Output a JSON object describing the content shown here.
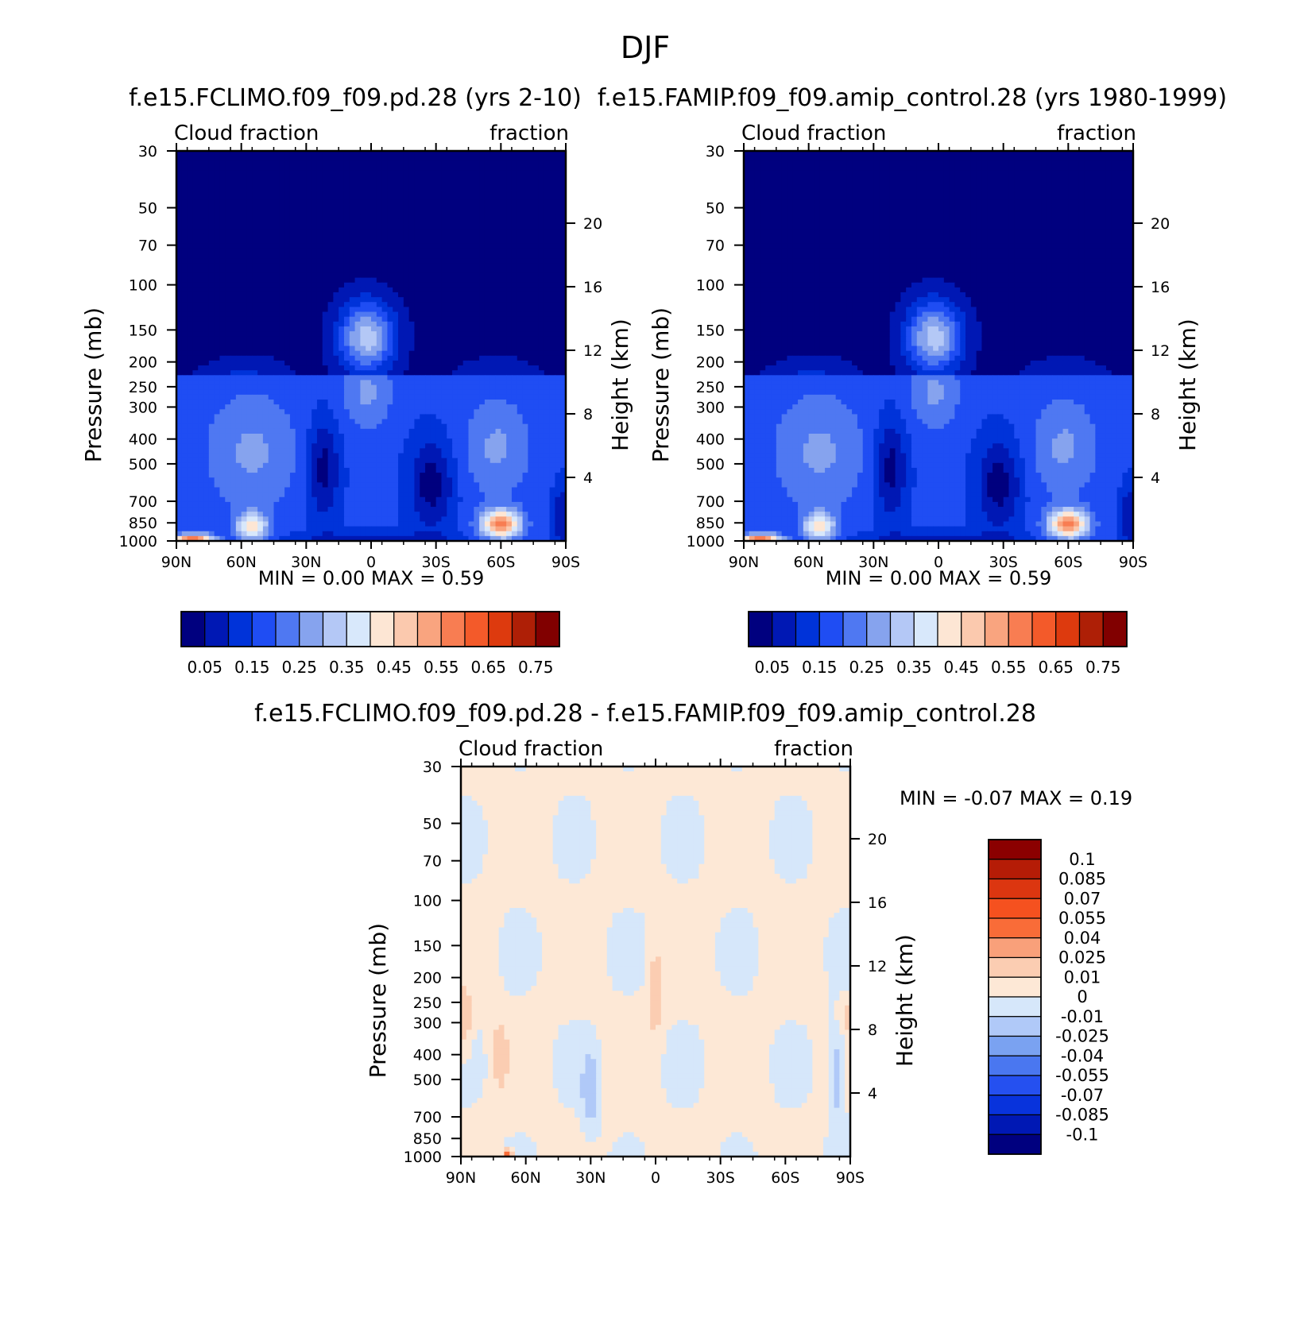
{
  "figure_title": "DJF",
  "chart_data": [
    {
      "type": "heatmap",
      "title": "f.e15.FCLIMO.f09_f09.pd.28 (yrs 2-10)",
      "left_string": "Cloud fraction",
      "right_string": "fraction",
      "xlabel": "",
      "ylabel": "Pressure (mb)",
      "y2label": "Height (km)",
      "x_ticklabels": [
        "90N",
        "60N",
        "30N",
        "0",
        "30S",
        "60S",
        "90S"
      ],
      "x_ticks_lat": [
        90,
        60,
        30,
        0,
        -30,
        -60,
        -90
      ],
      "y_ticklabels": [
        "30",
        "50",
        "70",
        "100",
        "150",
        "200",
        "250",
        "300",
        "400",
        "500",
        "700",
        "850",
        "1000"
      ],
      "y_ticks_mb": [
        30,
        50,
        70,
        100,
        150,
        200,
        250,
        300,
        400,
        500,
        700,
        850,
        1000
      ],
      "y2_ticklabels": [
        "20",
        "16",
        "12",
        "8",
        "4"
      ],
      "y2_ticks_km": [
        20,
        16,
        12,
        8,
        4
      ],
      "xlim": [
        90,
        -90
      ],
      "ylim": [
        1000,
        30
      ],
      "y_scale": "log",
      "stats": "MIN =     0.00   MAX =     0.59",
      "min": 0.0,
      "max": 0.59,
      "colorbar": {
        "orientation": "horizontal",
        "colors": [
          "#00007f",
          "#0018b4",
          "#0033d9",
          "#1f4df3",
          "#4f78f2",
          "#86a3ee",
          "#b4c8f6",
          "#d8e8fb",
          "#fde6d4",
          "#fbc9ae",
          "#f9a47f",
          "#f87d52",
          "#f35a2a",
          "#dd3a0e",
          "#ae1f06",
          "#810000"
        ],
        "labels": [
          "0.05",
          "0.15",
          "0.25",
          "0.35",
          "0.45",
          "0.55",
          "0.65",
          "0.75"
        ],
        "levels": [
          0.05,
          0.1,
          0.15,
          0.2,
          0.25,
          0.3,
          0.35,
          0.4,
          0.45,
          0.5,
          0.55,
          0.6,
          0.65,
          0.7,
          0.75
        ]
      }
    },
    {
      "type": "heatmap",
      "title": "f.e15.FAMIP.f09_f09.amip_control.28 (yrs 1980-1999)",
      "left_string": "Cloud fraction",
      "right_string": "fraction",
      "xlabel": "",
      "ylabel": "Pressure (mb)",
      "y2label": "Height (km)",
      "x_ticklabels": [
        "90N",
        "60N",
        "30N",
        "0",
        "30S",
        "60S",
        "90S"
      ],
      "x_ticks_lat": [
        90,
        60,
        30,
        0,
        -30,
        -60,
        -90
      ],
      "y_ticklabels": [
        "30",
        "50",
        "70",
        "100",
        "150",
        "200",
        "250",
        "300",
        "400",
        "500",
        "700",
        "850",
        "1000"
      ],
      "y_ticks_mb": [
        30,
        50,
        70,
        100,
        150,
        200,
        250,
        300,
        400,
        500,
        700,
        850,
        1000
      ],
      "y2_ticklabels": [
        "20",
        "16",
        "12",
        "8",
        "4"
      ],
      "y2_ticks_km": [
        20,
        16,
        12,
        8,
        4
      ],
      "xlim": [
        90,
        -90
      ],
      "ylim": [
        1000,
        30
      ],
      "y_scale": "log",
      "stats": "MIN =     0.00   MAX =     0.59",
      "min": 0.0,
      "max": 0.59,
      "colorbar": {
        "orientation": "horizontal",
        "colors": [
          "#00007f",
          "#0018b4",
          "#0033d9",
          "#1f4df3",
          "#4f78f2",
          "#86a3ee",
          "#b4c8f6",
          "#d8e8fb",
          "#fde6d4",
          "#fbc9ae",
          "#f9a47f",
          "#f87d52",
          "#f35a2a",
          "#dd3a0e",
          "#ae1f06",
          "#810000"
        ],
        "labels": [
          "0.05",
          "0.15",
          "0.25",
          "0.35",
          "0.45",
          "0.55",
          "0.65",
          "0.75"
        ],
        "levels": [
          0.05,
          0.1,
          0.15,
          0.2,
          0.25,
          0.3,
          0.35,
          0.4,
          0.45,
          0.5,
          0.55,
          0.6,
          0.65,
          0.7,
          0.75
        ]
      }
    },
    {
      "type": "heatmap",
      "title": "f.e15.FCLIMO.f09_f09.pd.28 - f.e15.FAMIP.f09_f09.amip_control.28",
      "left_string": "Cloud fraction",
      "right_string": "fraction",
      "xlabel": "",
      "ylabel": "Pressure (mb)",
      "y2label": "Height (km)",
      "x_ticklabels": [
        "90N",
        "60N",
        "30N",
        "0",
        "30S",
        "60S",
        "90S"
      ],
      "x_ticks_lat": [
        90,
        60,
        30,
        0,
        -30,
        -60,
        -90
      ],
      "y_ticklabels": [
        "30",
        "50",
        "70",
        "100",
        "150",
        "200",
        "250",
        "300",
        "400",
        "500",
        "700",
        "850",
        "1000"
      ],
      "y_ticks_mb": [
        30,
        50,
        70,
        100,
        150,
        200,
        250,
        300,
        400,
        500,
        700,
        850,
        1000
      ],
      "y2_ticklabels": [
        "20",
        "16",
        "12",
        "8",
        "4"
      ],
      "y2_ticks_km": [
        20,
        16,
        12,
        8,
        4
      ],
      "xlim": [
        90,
        -90
      ],
      "ylim": [
        1000,
        30
      ],
      "y_scale": "log",
      "stats": "MIN =   -0.07   MAX =     0.19",
      "min": -0.07,
      "max": 0.19,
      "colorbar": {
        "orientation": "vertical",
        "colors": [
          "#8b0000",
          "#b51c06",
          "#dc3610",
          "#f5511f",
          "#f96c38",
          "#f9a07a",
          "#fbcdb2",
          "#fde8d6",
          "#d6e7fa",
          "#b0c9f8",
          "#7aa2f1",
          "#4a77f0",
          "#2550f0",
          "#0833dc",
          "#0018b4",
          "#00007f"
        ],
        "labels": [
          "0.1",
          "0.085",
          "0.07",
          "0.055",
          "0.04",
          "0.025",
          "0.01",
          "0",
          "-0.01",
          "-0.025",
          "-0.04",
          "-0.055",
          "-0.07",
          "-0.085",
          "-0.1"
        ],
        "levels": [
          0.1,
          0.085,
          0.07,
          0.055,
          0.04,
          0.025,
          0.01,
          0,
          -0.01,
          -0.025,
          -0.04,
          -0.055,
          -0.07,
          -0.085,
          -0.1
        ]
      }
    }
  ]
}
